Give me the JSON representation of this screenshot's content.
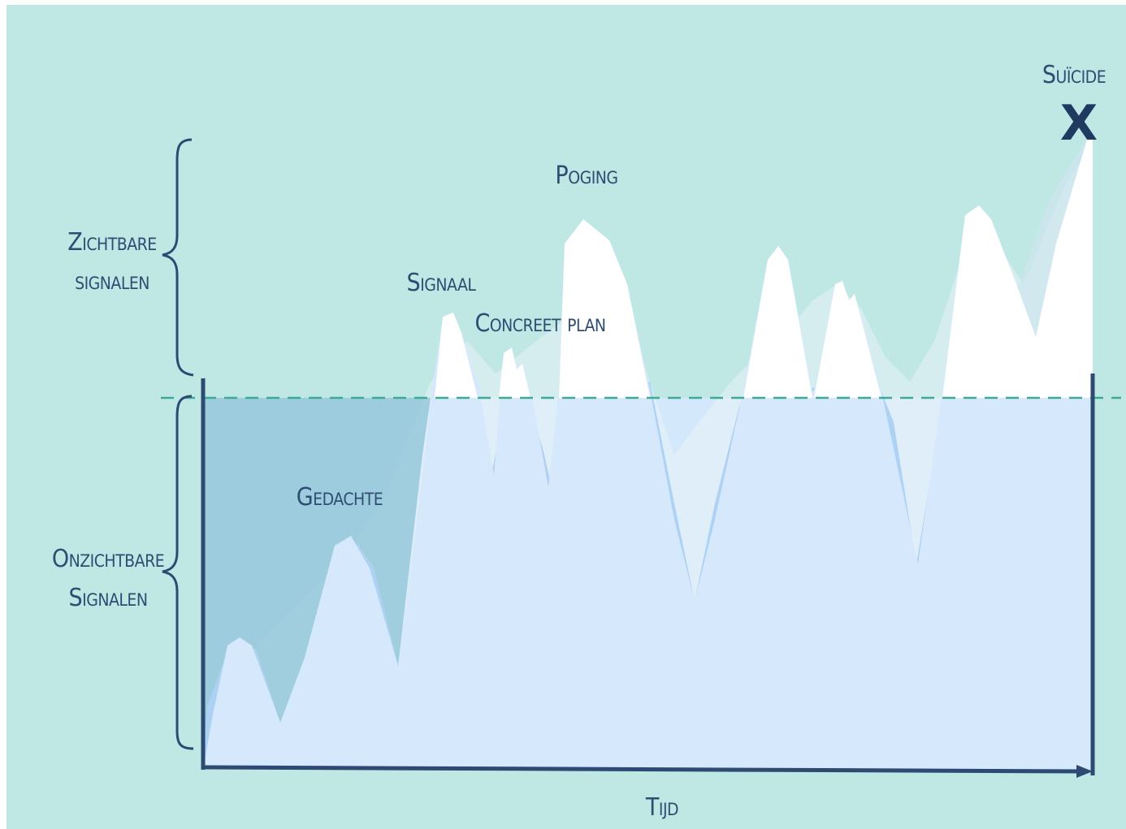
{
  "labels": {
    "suicide": "Suïcide",
    "suicide_marker": "X",
    "poging": "Poging",
    "signaal": "Signaal",
    "concreet_plan": "Concreet plan",
    "gedachte": "Gedachte",
    "zichtbare_line1": "Zichtbare",
    "zichtbare_line2": "signalen",
    "onzichtbare_line1": "Onzichtbare",
    "onzichtbare_line2": "Signalen",
    "tijd": "Tijd"
  },
  "colors": {
    "background": "#bfe7e4",
    "water": "#d4e8fb",
    "peaks_mid": "#a9cef3",
    "peaks_dark": "#8cc3d6",
    "peaks_white": "#ffffff",
    "waterline": "#3fa993",
    "axis": "#2c4a72",
    "text": "#2f4d72"
  }
}
